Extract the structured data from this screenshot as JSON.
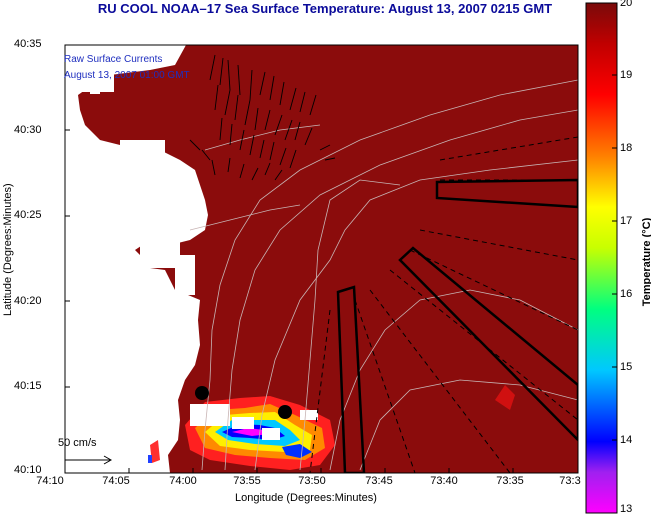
{
  "title": "RU COOL  NOAA–17  Sea Surface Temperature:  August 13, 2007 0215 GMT",
  "overlay": {
    "line1": "Raw Surface Currents",
    "line2": "August 13, 2007 01:00 GMT"
  },
  "axes": {
    "xlabel": "Longitude (Degrees:Minutes)",
    "ylabel": "Latitude (Degrees:Minutes)",
    "xticks": [
      "74:10",
      "74:05",
      "74:00",
      "73:55",
      "73:50",
      "73:45",
      "73:40",
      "73:35",
      "73:3"
    ],
    "yticks": [
      "40:35",
      "40:30",
      "40:25",
      "40:20",
      "40:15",
      "40:10"
    ]
  },
  "colorbar": {
    "title": "Temperature (°C)",
    "ticks": [
      "20",
      "19",
      "18",
      "17",
      "16",
      "15",
      "14",
      "13"
    ],
    "range": [
      13,
      20
    ]
  },
  "scale_vector": {
    "label": "50 cm/s"
  },
  "colors": {
    "sst_max": "#8b0c0c",
    "land": "#ffffff",
    "title": "#0b0b9a",
    "overlay_text": "#1f2fbf"
  }
}
